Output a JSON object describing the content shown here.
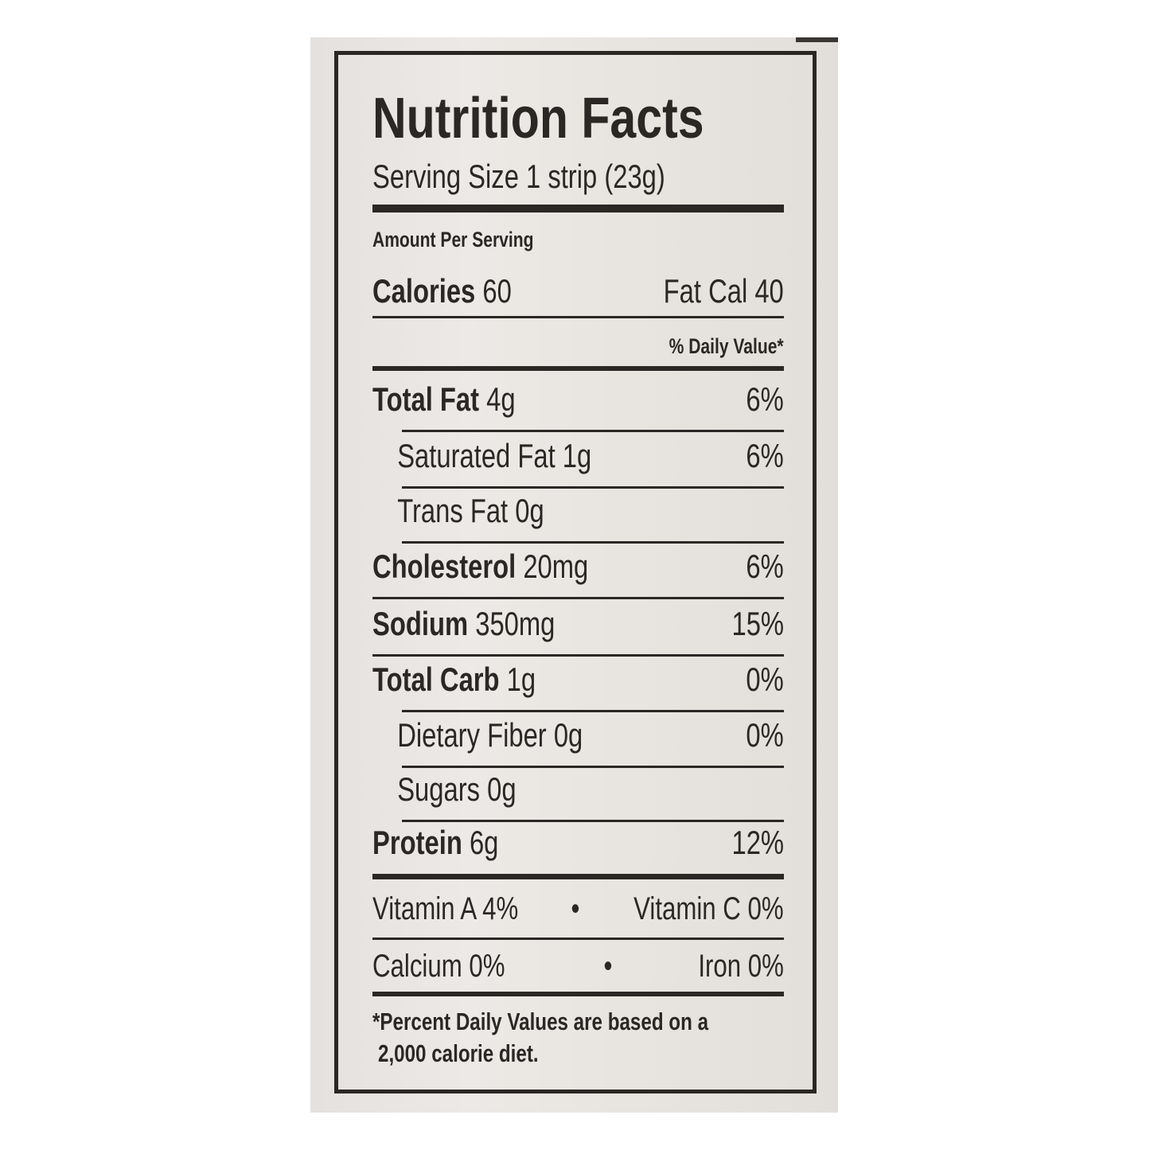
{
  "label": {
    "title": "Nutrition Facts",
    "serving_size": "Serving Size 1 strip (23g)",
    "amount_per_serving": "Amount Per Serving",
    "calories_label": "Calories",
    "calories_value": "60",
    "fat_cal": "Fat Cal 40",
    "daily_value_header": "% Daily Value*",
    "nutrients": [
      {
        "name": "Total Fat",
        "amount": "4g",
        "dv": "6%"
      },
      {
        "name": "Saturated Fat",
        "amount": "1g",
        "dv": "6%"
      },
      {
        "name": "Trans Fat",
        "amount": "0g",
        "dv": ""
      },
      {
        "name": "Cholesterol",
        "amount": "20mg",
        "dv": "6%"
      },
      {
        "name": "Sodium",
        "amount": "350mg",
        "dv": "15%"
      },
      {
        "name": "Total Carb",
        "amount": "1g",
        "dv": "0%"
      },
      {
        "name": "Dietary Fiber",
        "amount": "0g",
        "dv": "0%"
      },
      {
        "name": "Sugars",
        "amount": "0g",
        "dv": ""
      },
      {
        "name": "Protein",
        "amount": "6g",
        "dv": "12%"
      }
    ],
    "vitamin_a": "Vitamin A 4%",
    "vitamin_c": "Vitamin C 0%",
    "calcium": "Calcium 0%",
    "iron": "Iron 0%",
    "bullet": "•",
    "footnote_line1": "*Percent Daily Values are based on a",
    "footnote_line2": "2,000 calorie diet."
  },
  "colors": {
    "ink": "#2b2725",
    "package": "#e9e6e3"
  }
}
